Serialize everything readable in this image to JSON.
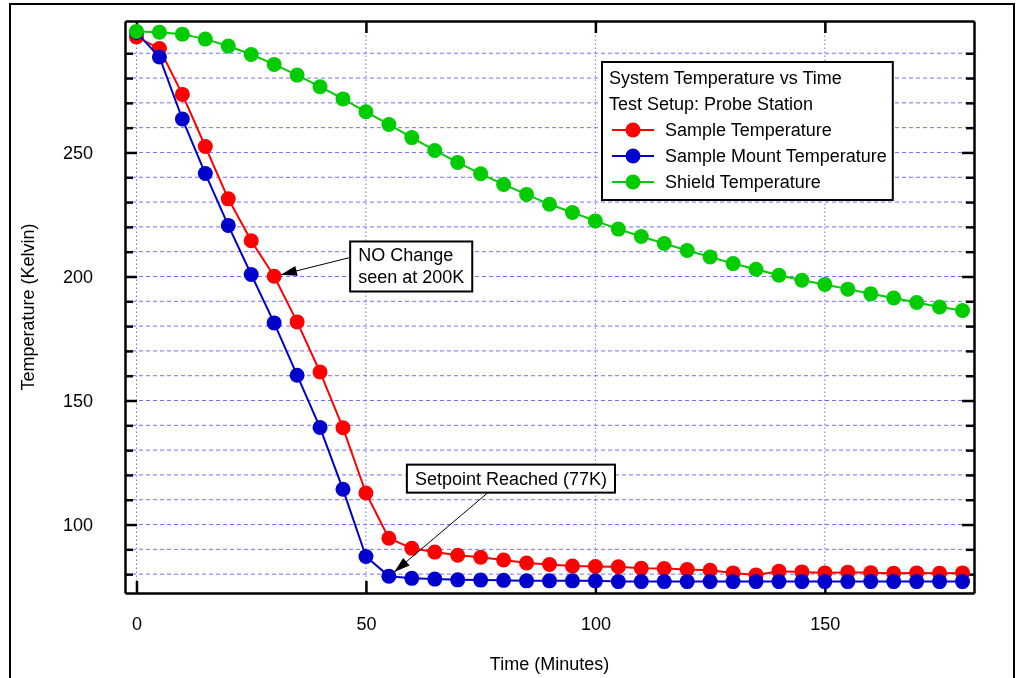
{
  "chart_data": {
    "type": "line",
    "title": "System Temperature vs Time",
    "subtitle": "Test Setup: Probe Station",
    "xlabel": "Time (Minutes)",
    "ylabel": "Temperature (Kelvin)",
    "x": [
      0,
      5,
      10,
      15,
      20,
      25,
      30,
      35,
      40,
      45,
      50,
      55,
      60,
      65,
      70,
      75,
      80,
      85,
      90,
      95,
      100,
      105,
      110,
      115,
      120,
      125,
      130,
      135,
      140,
      145,
      150,
      155,
      160,
      165,
      170,
      175,
      180
    ],
    "series": [
      {
        "name": "Sample Temperature",
        "color": "#ff0000",
        "values": [
          296.6,
          291.9,
          273.4,
          252.4,
          231.3,
          214.4,
          200.1,
          181.7,
          161.5,
          139,
          112.7,
          94.5,
          90.4,
          88.9,
          87.6,
          86.8,
          85.7,
          84.5,
          83.9,
          83.3,
          83.1,
          83,
          82.4,
          82.3,
          81.9,
          81.6,
          80.5,
          79.7,
          81.2,
          80.9,
          80.5,
          80.8,
          80.6,
          80.4,
          80.5,
          80.4,
          80.5
        ]
      },
      {
        "name": "Sample Mount Temperature",
        "color": "#0000cc",
        "values": [
          298.4,
          288.5,
          263.5,
          241.5,
          220.6,
          200.8,
          181.3,
          160.2,
          139.1,
          114.2,
          87.1,
          79.2,
          78.3,
          78,
          77.7,
          77.6,
          77.5,
          77.3,
          77.3,
          77.3,
          77.3,
          77,
          77,
          77,
          77,
          77,
          77,
          77,
          77,
          77,
          77,
          77,
          77,
          77,
          77,
          77,
          77
        ]
      },
      {
        "name": "Shield Temperature",
        "color": "#00cc00",
        "values": [
          298.8,
          298.5,
          297.7,
          295.7,
          292.9,
          289.5,
          285.5,
          281.2,
          276.5,
          271.6,
          266.4,
          261.3,
          256,
          250.8,
          246,
          241.4,
          237.1,
          233.1,
          229.1,
          225.8,
          222.4,
          219.1,
          216.1,
          213.3,
          210.5,
          207.9,
          205.2,
          202.9,
          200.5,
          198.5,
          196.8,
          194.9,
          193,
          191.3,
          189.5,
          187.7,
          186.3
        ]
      }
    ],
    "xlim": [
      -2.5,
      182.5
    ],
    "ylim": [
      72.4,
      303
    ],
    "xticks": [
      0,
      50,
      100,
      150
    ],
    "yticks": [
      {
        "value": 80,
        "label": null
      },
      {
        "value": 90,
        "label": null
      },
      100,
      {
        "value": 110,
        "label": null
      },
      {
        "value": 120,
        "label": null
      },
      {
        "value": 130,
        "label": null
      },
      {
        "value": 140,
        "label": null
      },
      150,
      {
        "value": 160,
        "label": null
      },
      {
        "value": 170,
        "label": null
      },
      {
        "value": 180,
        "label": null
      },
      {
        "value": 190,
        "label": null
      },
      200,
      {
        "value": 210,
        "label": null
      },
      {
        "value": 220,
        "label": null
      },
      {
        "value": 230,
        "label": null
      },
      {
        "value": 240,
        "label": null
      },
      250,
      {
        "value": 260,
        "label": null
      },
      {
        "value": 270,
        "label": null
      },
      {
        "value": 280,
        "label": null
      },
      {
        "value": 290,
        "label": null
      }
    ],
    "grid": true,
    "legend": "top right",
    "marker": "circle",
    "line_style": "solid",
    "annotations": [
      {
        "text": "NO Change\nseen at 200K",
        "x": 30,
        "y": 200
      },
      {
        "text": "Setpoint Reached (77K)",
        "x": 55,
        "y": 79
      }
    ]
  }
}
